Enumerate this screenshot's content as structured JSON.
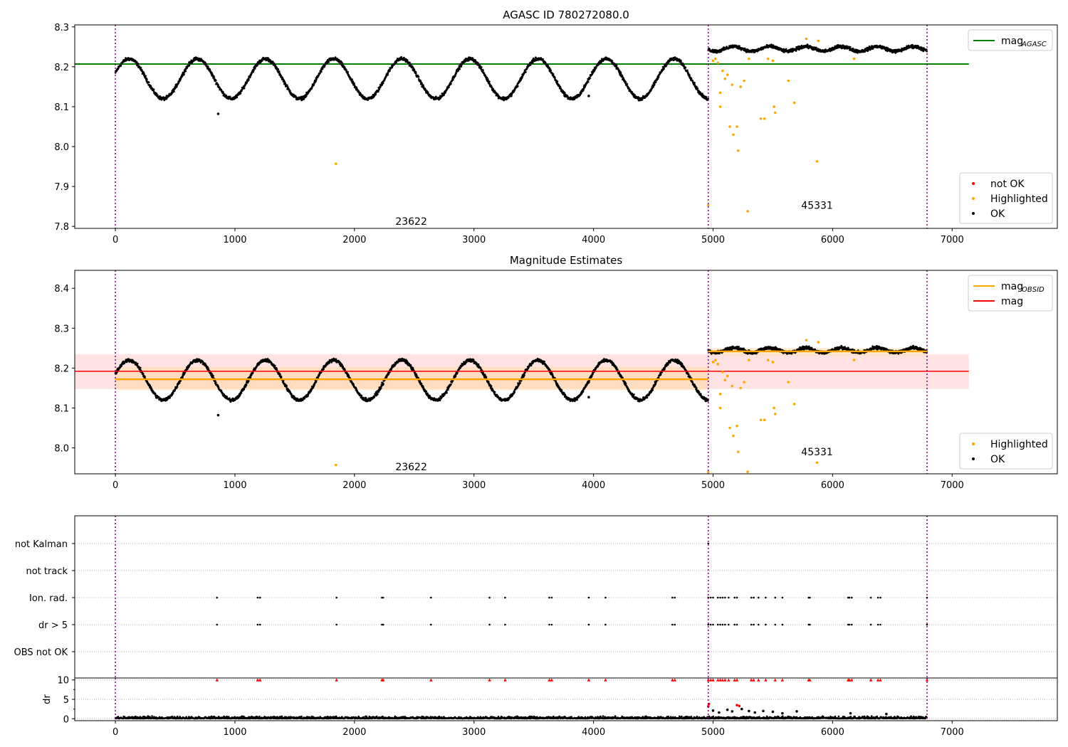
{
  "chart_data": [
    {
      "type": "scatter",
      "title": "AGASC ID 780272080.0",
      "xlim": [
        -340,
        7880
      ],
      "ylim": [
        7.795,
        8.305
      ],
      "xticks": [
        0,
        1000,
        2000,
        3000,
        4000,
        5000,
        6000,
        7000
      ],
      "yticks": [
        7.8,
        7.9,
        8.0,
        8.1,
        8.2,
        8.3
      ],
      "ytick_labels": [
        "7.8",
        "7.9",
        "8.0",
        "8.1",
        "8.2",
        "8.3"
      ],
      "obs_boundaries": [
        0,
        4960,
        6790
      ],
      "obs_labels": [
        {
          "text": "23622",
          "x": 2475,
          "y": 7.813
        },
        {
          "text": "45331",
          "x": 5870,
          "y": 7.853
        }
      ],
      "legend_upper": {
        "position": "upper right",
        "entries": [
          {
            "label": "mag",
            "subscript": "AGASC",
            "color": "#008000",
            "kind": "line"
          }
        ]
      },
      "legend_lower": {
        "position": "lower right",
        "entries": [
          {
            "label": "not OK",
            "color": "#ff0000",
            "kind": "point"
          },
          {
            "label": "Highlighted",
            "color": "#ffa500",
            "kind": "point"
          },
          {
            "label": "OK",
            "color": "#000000",
            "kind": "point"
          }
        ]
      },
      "hlines": [
        {
          "name": "mag_AGASC",
          "y": 8.207,
          "x": [
            -340,
            7140
          ],
          "color": "#008000"
        }
      ],
      "series": [
        {
          "name": "OK",
          "color": "#000000",
          "segments": [
            {
              "x": [
                0,
                4960
              ],
              "base": 8.17,
              "amp": 0.05,
              "period": 570,
              "phase": 0.3
            },
            {
              "x": [
                4960,
                6790
              ],
              "base": 8.245,
              "amp": 0.006,
              "period": 300,
              "phase": 0
            }
          ]
        },
        {
          "name": "Highlighted",
          "color": "#ffa500",
          "points": [
            [
              1845,
              7.957
            ],
            [
              4960,
              7.853
            ],
            [
              5000,
              8.215
            ],
            [
              5020,
              8.22
            ],
            [
              5040,
              8.21
            ],
            [
              5060,
              8.135
            ],
            [
              5060,
              8.1
            ],
            [
              5080,
              8.19
            ],
            [
              5100,
              8.17
            ],
            [
              5120,
              8.18
            ],
            [
              5140,
              8.05
            ],
            [
              5160,
              8.155
            ],
            [
              5170,
              8.03
            ],
            [
              5200,
              8.05
            ],
            [
              5210,
              7.99
            ],
            [
              5230,
              8.15
            ],
            [
              5260,
              8.165
            ],
            [
              5290,
              7.838
            ],
            [
              5300,
              8.22
            ],
            [
              5400,
              8.07
            ],
            [
              5430,
              8.07
            ],
            [
              5460,
              8.22
            ],
            [
              5500,
              8.215
            ],
            [
              5510,
              8.1
            ],
            [
              5520,
              8.085
            ],
            [
              5630,
              8.165
            ],
            [
              5680,
              8.11
            ],
            [
              5780,
              8.27
            ],
            [
              5870,
              7.963
            ],
            [
              5880,
              8.265
            ],
            [
              6180,
              8.22
            ]
          ]
        }
      ]
    },
    {
      "type": "scatter",
      "title": "Magnitude Estimates",
      "xlim": [
        -340,
        7880
      ],
      "ylim": [
        7.935,
        8.445
      ],
      "xticks": [
        0,
        1000,
        2000,
        3000,
        4000,
        5000,
        6000,
        7000
      ],
      "yticks": [
        8.0,
        8.1,
        8.2,
        8.3,
        8.4
      ],
      "ytick_labels": [
        "8.0",
        "8.1",
        "8.2",
        "8.3",
        "8.4"
      ],
      "obs_boundaries": [
        0,
        4960,
        6790
      ],
      "obs_labels": [
        {
          "text": "23622",
          "x": 2475,
          "y": 7.953
        },
        {
          "text": "45331",
          "x": 5870,
          "y": 7.99
        }
      ],
      "legend_upper": {
        "position": "upper right",
        "entries": [
          {
            "label": "mag",
            "subscript": "OBSID",
            "color": "#ffa500",
            "kind": "line"
          },
          {
            "label": "mag",
            "subscript": "",
            "color": "#ff0000",
            "kind": "line"
          }
        ]
      },
      "legend_lower": {
        "position": "lower right",
        "entries": [
          {
            "label": "Highlighted",
            "color": "#ffa500",
            "kind": "point"
          },
          {
            "label": "OK",
            "color": "#000000",
            "kind": "point"
          }
        ]
      },
      "bands": [
        {
          "y": [
            8.148,
            8.235
          ],
          "x": [
            -340,
            7140
          ],
          "color": "#ffc0c0",
          "opacity": 0.45
        },
        {
          "y": [
            8.145,
            8.203
          ],
          "x": [
            0,
            4960
          ],
          "color": "#ffd8a8",
          "opacity": 0.55
        },
        {
          "y": [
            8.232,
            8.25
          ],
          "x": [
            4960,
            6790
          ],
          "color": "#ffd8a8",
          "opacity": 0.55
        }
      ],
      "hlines": [
        {
          "name": "mag",
          "y": 8.192,
          "x": [
            -340,
            7140
          ],
          "color": "#ff0000"
        },
        {
          "name": "mag_OBSID",
          "y": 8.172,
          "x": [
            0,
            4960
          ],
          "color": "#ffa500"
        },
        {
          "name": "mag_OBSID",
          "y": 8.242,
          "x": [
            4960,
            6790
          ],
          "color": "#ffa500"
        }
      ],
      "series": [
        {
          "name": "OK",
          "color": "#000000",
          "segments": [
            {
              "x": [
                0,
                4960
              ],
              "base": 8.17,
              "amp": 0.05,
              "period": 570,
              "phase": 0.3
            },
            {
              "x": [
                4960,
                6790
              ],
              "base": 8.245,
              "amp": 0.006,
              "period": 300,
              "phase": 0
            }
          ]
        },
        {
          "name": "Highlighted",
          "color": "#ffa500",
          "points": [
            [
              1845,
              7.957
            ],
            [
              4960,
              7.94
            ],
            [
              5000,
              8.215
            ],
            [
              5020,
              8.22
            ],
            [
              5040,
              8.21
            ],
            [
              5060,
              8.135
            ],
            [
              5060,
              8.1
            ],
            [
              5080,
              8.19
            ],
            [
              5100,
              8.17
            ],
            [
              5120,
              8.18
            ],
            [
              5140,
              8.05
            ],
            [
              5160,
              8.155
            ],
            [
              5170,
              8.03
            ],
            [
              5200,
              8.055
            ],
            [
              5210,
              7.99
            ],
            [
              5230,
              8.15
            ],
            [
              5260,
              8.165
            ],
            [
              5290,
              7.94
            ],
            [
              5300,
              8.22
            ],
            [
              5400,
              8.07
            ],
            [
              5430,
              8.07
            ],
            [
              5460,
              8.22
            ],
            [
              5500,
              8.215
            ],
            [
              5510,
              8.1
            ],
            [
              5520,
              8.085
            ],
            [
              5630,
              8.165
            ],
            [
              5680,
              8.11
            ],
            [
              5780,
              8.27
            ],
            [
              5870,
              7.963
            ],
            [
              5880,
              8.265
            ],
            [
              6180,
              8.22
            ]
          ]
        }
      ]
    },
    {
      "type": "scatter",
      "title": "",
      "xlim": [
        -340,
        7880
      ],
      "categories": [
        "OBS not OK",
        "dr > 5",
        "Ion. rad.",
        "not track",
        "not Kalman"
      ],
      "obs_boundaries": [
        0,
        4960,
        6790
      ],
      "flag_x": [
        850,
        1190,
        1210,
        1850,
        2230,
        2240,
        2640,
        3130,
        3260,
        3630,
        3650,
        3960,
        4100,
        4660,
        4680,
        4960,
        4980,
        5000,
        5040,
        5060,
        5080,
        5100,
        5130,
        5180,
        5200,
        5320,
        5340,
        5380,
        5440,
        5520,
        5580,
        5800,
        5810,
        6130,
        6140,
        6160,
        6320,
        6380,
        6400,
        6790
      ],
      "not_kalman_x": [
        4960
      ]
    },
    {
      "type": "scatter",
      "title": "",
      "xlim": [
        -340,
        7880
      ],
      "ylim": [
        -0.5,
        10.5
      ],
      "ylabel": "dr",
      "xticks": [
        0,
        1000,
        2000,
        3000,
        4000,
        5000,
        6000,
        7000
      ],
      "yticks": [
        0,
        5,
        10
      ],
      "ytick_labels": [
        "0",
        "5",
        "10"
      ],
      "obs_boundaries": [
        0,
        4960,
        6790
      ],
      "series": [
        {
          "name": "OK",
          "color": "#000000",
          "noise": [
            0.05,
            0.7
          ]
        },
        {
          "name": "flagged",
          "color": "#ff0000",
          "y": 10,
          "marker": "triangle"
        },
        {
          "name": "outliers",
          "color": "#ff0000",
          "points": [
            [
              4960,
              3.2
            ],
            [
              4965,
              3.8
            ],
            [
              5200,
              3.5
            ],
            [
              5220,
              3.3
            ]
          ]
        },
        {
          "name": "scatter_high",
          "color": "#000000",
          "points": [
            [
              5000,
              2.1
            ],
            [
              5050,
              1.6
            ],
            [
              5120,
              2.3
            ],
            [
              5160,
              1.9
            ],
            [
              5240,
              2.5
            ],
            [
              5300,
              2.0
            ],
            [
              5350,
              1.6
            ],
            [
              5420,
              2.0
            ],
            [
              5500,
              1.8
            ],
            [
              5580,
              1.4
            ],
            [
              5700,
              1.9
            ],
            [
              6150,
              1.4
            ],
            [
              6450,
              1.2
            ]
          ]
        }
      ]
    }
  ]
}
